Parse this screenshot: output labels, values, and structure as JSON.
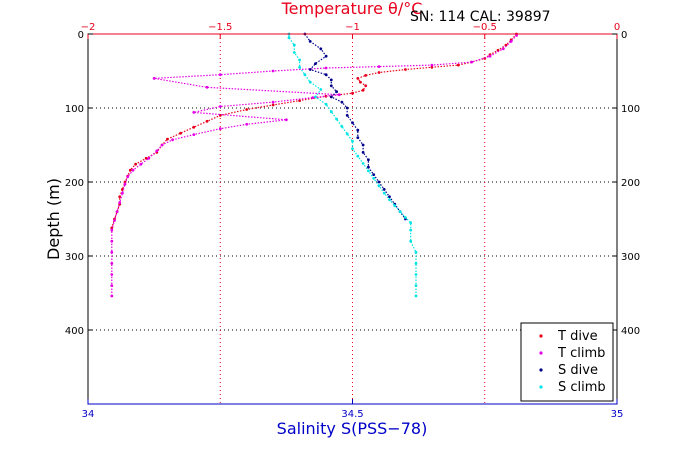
{
  "chart_data": {
    "type": "scatter",
    "title": "Temperature θ/°C",
    "annotation": "SN: 114  CAL: 39897",
    "ylabel": "Depth (m)",
    "xlabel_bottom": "Salinity S(PSS−78)",
    "xlabel_top": "Temperature θ/°C",
    "ylim": [
      0,
      500
    ],
    "y_reversed": true,
    "xlim_bottom": [
      34,
      35
    ],
    "xlim_top": [
      -2,
      0
    ],
    "y_ticks": [
      0,
      100,
      200,
      300,
      400
    ],
    "y_tick_labels": [
      "0",
      "100",
      "200",
      "300",
      "400"
    ],
    "x_bottom_ticks": [
      34,
      34.5,
      35
    ],
    "x_bottom_tick_labels": [
      "34",
      "34.5",
      "35"
    ],
    "x_top_ticks": [
      -2,
      -1.5,
      -1,
      -0.5,
      0
    ],
    "x_top_tick_labels": [
      "−2",
      "−1.5",
      "−1",
      "−0.5",
      "0"
    ],
    "grid": true,
    "legend_placement": "bottom-right",
    "colors": {
      "t_dive": "#e8001c",
      "t_climb": "#e600e6",
      "s_dive": "#00008b",
      "s_climb": "#00e5e5",
      "top_axis": "#e8001c",
      "bottom_axis": "#0000c8"
    },
    "series": [
      {
        "name": "T dive",
        "axis": "top",
        "color": "#e8001c",
        "points": [
          {
            "x": -0.38,
            "y": 0
          },
          {
            "x": -0.4,
            "y": 8
          },
          {
            "x": -0.42,
            "y": 15
          },
          {
            "x": -0.45,
            "y": 22
          },
          {
            "x": -0.48,
            "y": 28
          },
          {
            "x": -0.5,
            "y": 33
          },
          {
            "x": -0.55,
            "y": 38
          },
          {
            "x": -0.6,
            "y": 42
          },
          {
            "x": -0.7,
            "y": 45
          },
          {
            "x": -0.8,
            "y": 48
          },
          {
            "x": -0.9,
            "y": 52
          },
          {
            "x": -0.95,
            "y": 56
          },
          {
            "x": -0.98,
            "y": 60
          },
          {
            "x": -0.97,
            "y": 65
          },
          {
            "x": -0.95,
            "y": 70
          },
          {
            "x": -0.96,
            "y": 76
          },
          {
            "x": -1.0,
            "y": 80
          },
          {
            "x": -1.1,
            "y": 84
          },
          {
            "x": -1.2,
            "y": 90
          },
          {
            "x": -1.3,
            "y": 96
          },
          {
            "x": -1.4,
            "y": 102
          },
          {
            "x": -1.5,
            "y": 110
          },
          {
            "x": -1.55,
            "y": 118
          },
          {
            "x": -1.6,
            "y": 126
          },
          {
            "x": -1.65,
            "y": 134
          },
          {
            "x": -1.7,
            "y": 142
          },
          {
            "x": -1.72,
            "y": 150
          },
          {
            "x": -1.74,
            "y": 160
          },
          {
            "x": -1.78,
            "y": 168
          },
          {
            "x": -1.82,
            "y": 176
          },
          {
            "x": -1.84,
            "y": 184
          },
          {
            "x": -1.85,
            "y": 192
          },
          {
            "x": -1.86,
            "y": 200
          },
          {
            "x": -1.87,
            "y": 210
          },
          {
            "x": -1.88,
            "y": 220
          },
          {
            "x": -1.88,
            "y": 230
          },
          {
            "x": -1.89,
            "y": 240
          },
          {
            "x": -1.9,
            "y": 250
          },
          {
            "x": -1.91,
            "y": 262
          }
        ]
      },
      {
        "name": "T climb",
        "axis": "top",
        "color": "#e600e6",
        "points": [
          {
            "x": -1.91,
            "y": 354
          },
          {
            "x": -1.91,
            "y": 340
          },
          {
            "x": -1.91,
            "y": 325
          },
          {
            "x": -1.91,
            "y": 310
          },
          {
            "x": -1.91,
            "y": 295
          },
          {
            "x": -1.91,
            "y": 280
          },
          {
            "x": -1.91,
            "y": 265
          },
          {
            "x": -1.9,
            "y": 252
          },
          {
            "x": -1.89,
            "y": 240
          },
          {
            "x": -1.88,
            "y": 228
          },
          {
            "x": -1.87,
            "y": 215
          },
          {
            "x": -1.86,
            "y": 203
          },
          {
            "x": -1.85,
            "y": 193
          },
          {
            "x": -1.83,
            "y": 184
          },
          {
            "x": -1.8,
            "y": 176
          },
          {
            "x": -1.77,
            "y": 168
          },
          {
            "x": -1.74,
            "y": 158
          },
          {
            "x": -1.72,
            "y": 150
          },
          {
            "x": -1.68,
            "y": 143
          },
          {
            "x": -1.6,
            "y": 136
          },
          {
            "x": -1.5,
            "y": 128
          },
          {
            "x": -1.4,
            "y": 122
          },
          {
            "x": -1.25,
            "y": 116
          },
          {
            "x": -1.6,
            "y": 106
          },
          {
            "x": -1.5,
            "y": 98
          },
          {
            "x": -1.3,
            "y": 92
          },
          {
            "x": -1.15,
            "y": 86
          },
          {
            "x": -1.05,
            "y": 82
          },
          {
            "x": -1.55,
            "y": 72
          },
          {
            "x": -1.75,
            "y": 60
          },
          {
            "x": -1.5,
            "y": 55
          },
          {
            "x": -1.3,
            "y": 50
          },
          {
            "x": -1.1,
            "y": 46
          },
          {
            "x": -0.9,
            "y": 44
          },
          {
            "x": -0.7,
            "y": 42
          },
          {
            "x": -0.55,
            "y": 38
          },
          {
            "x": -0.48,
            "y": 30
          },
          {
            "x": -0.43,
            "y": 20
          },
          {
            "x": -0.4,
            "y": 10
          },
          {
            "x": -0.38,
            "y": 2
          }
        ]
      },
      {
        "name": "S dive",
        "axis": "bottom",
        "color": "#00008b",
        "points": [
          {
            "x": 34.41,
            "y": 0
          },
          {
            "x": 34.42,
            "y": 10
          },
          {
            "x": 34.44,
            "y": 20
          },
          {
            "x": 34.45,
            "y": 30
          },
          {
            "x": 34.43,
            "y": 40
          },
          {
            "x": 34.42,
            "y": 48
          },
          {
            "x": 34.45,
            "y": 55
          },
          {
            "x": 34.46,
            "y": 62
          },
          {
            "x": 34.46,
            "y": 70
          },
          {
            "x": 34.47,
            "y": 78
          },
          {
            "x": 34.46,
            "y": 85
          },
          {
            "x": 34.48,
            "y": 92
          },
          {
            "x": 34.49,
            "y": 100
          },
          {
            "x": 34.49,
            "y": 110
          },
          {
            "x": 34.5,
            "y": 120
          },
          {
            "x": 34.51,
            "y": 130
          },
          {
            "x": 34.51,
            "y": 140
          },
          {
            "x": 34.52,
            "y": 150
          },
          {
            "x": 34.52,
            "y": 160
          },
          {
            "x": 34.53,
            "y": 170
          },
          {
            "x": 34.53,
            "y": 180
          },
          {
            "x": 34.54,
            "y": 190
          },
          {
            "x": 34.55,
            "y": 200
          },
          {
            "x": 34.56,
            "y": 210
          },
          {
            "x": 34.57,
            "y": 220
          },
          {
            "x": 34.58,
            "y": 230
          },
          {
            "x": 34.59,
            "y": 240
          },
          {
            "x": 34.6,
            "y": 250
          }
        ]
      },
      {
        "name": "S climb",
        "axis": "bottom",
        "color": "#00e5e5",
        "points": [
          {
            "x": 34.62,
            "y": 354
          },
          {
            "x": 34.62,
            "y": 340
          },
          {
            "x": 34.62,
            "y": 325
          },
          {
            "x": 34.62,
            "y": 310
          },
          {
            "x": 34.62,
            "y": 295
          },
          {
            "x": 34.61,
            "y": 280
          },
          {
            "x": 34.61,
            "y": 265
          },
          {
            "x": 34.61,
            "y": 255
          },
          {
            "x": 34.6,
            "y": 248
          },
          {
            "x": 34.59,
            "y": 240
          },
          {
            "x": 34.58,
            "y": 232
          },
          {
            "x": 34.57,
            "y": 224
          },
          {
            "x": 34.56,
            "y": 215
          },
          {
            "x": 34.55,
            "y": 205
          },
          {
            "x": 34.54,
            "y": 195
          },
          {
            "x": 34.53,
            "y": 185
          },
          {
            "x": 34.52,
            "y": 175
          },
          {
            "x": 34.51,
            "y": 165
          },
          {
            "x": 34.5,
            "y": 155
          },
          {
            "x": 34.5,
            "y": 145
          },
          {
            "x": 34.49,
            "y": 135
          },
          {
            "x": 34.48,
            "y": 125
          },
          {
            "x": 34.47,
            "y": 115
          },
          {
            "x": 34.46,
            "y": 105
          },
          {
            "x": 34.45,
            "y": 95
          },
          {
            "x": 34.43,
            "y": 85
          },
          {
            "x": 34.44,
            "y": 75
          },
          {
            "x": 34.42,
            "y": 65
          },
          {
            "x": 34.41,
            "y": 55
          },
          {
            "x": 34.4,
            "y": 45
          },
          {
            "x": 34.4,
            "y": 35
          },
          {
            "x": 34.39,
            "y": 25
          },
          {
            "x": 34.39,
            "y": 15
          },
          {
            "x": 34.38,
            "y": 5
          },
          {
            "x": 34.38,
            "y": 0
          }
        ]
      }
    ]
  }
}
